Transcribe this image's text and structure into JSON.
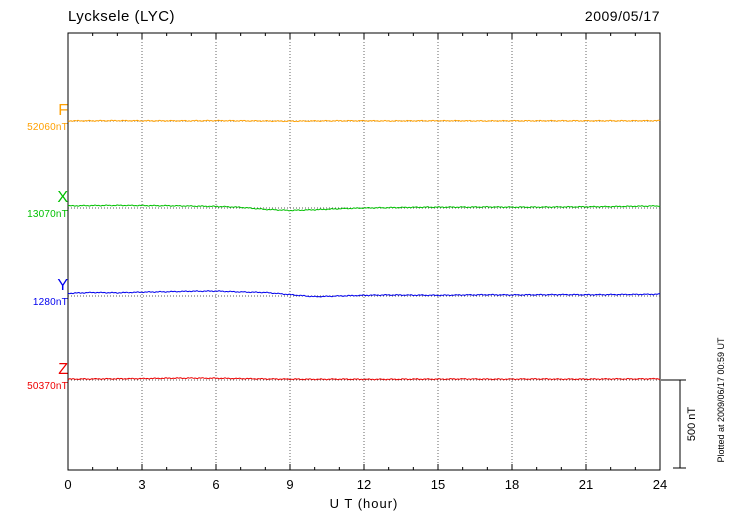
{
  "header": {
    "title": "Lycksele (LYC)",
    "date": "2009/05/17"
  },
  "axis": {
    "x_label": "U T (hour)",
    "x_ticks": [
      0,
      3,
      6,
      9,
      12,
      15,
      18,
      21,
      24
    ]
  },
  "scale_bar": {
    "label": "500 nT",
    "value_nt": 500
  },
  "footer_note": "Plotted at 2009/06/17 00:59 UT",
  "chart_data": {
    "type": "line",
    "title": "Lycksele (LYC) magnetogram 2009/05/17",
    "xlabel": "U T (hour)",
    "ylabel": "",
    "x_range": [
      0,
      24
    ],
    "grid": "vertical dotted every 3 hours; dotted baseline per trace",
    "legend_position": "left margin labels",
    "scale": {
      "label": "500 nT",
      "nt": 500
    },
    "x": [
      0,
      1,
      2,
      3,
      4,
      5,
      6,
      7,
      8,
      9,
      10,
      11,
      12,
      13,
      14,
      15,
      16,
      17,
      18,
      19,
      20,
      21,
      22,
      23,
      24
    ],
    "series": [
      {
        "name": "F",
        "base_label": "52060nT",
        "base": 52060,
        "color": "#FFA000",
        "values": [
          52061,
          52061,
          52062,
          52061,
          52061,
          52061,
          52062,
          52061,
          52060,
          52059,
          52060,
          52061,
          52061,
          52060,
          52061,
          52061,
          52061,
          52060,
          52061,
          52061,
          52061,
          52061,
          52061,
          52061,
          52062
        ]
      },
      {
        "name": "X",
        "base_label": "13070nT",
        "base": 13070,
        "color": "#00C000",
        "values": [
          13082,
          13084,
          13085,
          13084,
          13083,
          13081,
          13079,
          13074,
          13062,
          13056,
          13060,
          13066,
          13070,
          13072,
          13074,
          13075,
          13075,
          13076,
          13075,
          13075,
          13076,
          13077,
          13078,
          13080,
          13082
        ]
      },
      {
        "name": "Y",
        "base_label": "1280nT",
        "base": 1280,
        "color": "#0000EE",
        "values": [
          1295,
          1300,
          1298,
          1302,
          1304,
          1307,
          1308,
          1303,
          1300,
          1288,
          1276,
          1280,
          1284,
          1286,
          1285,
          1284,
          1286,
          1287,
          1286,
          1287,
          1288,
          1287,
          1288,
          1289,
          1290
        ]
      },
      {
        "name": "Z",
        "base_label": "50370nT",
        "base": 50370,
        "color": "#EE0000",
        "values": [
          50375,
          50376,
          50377,
          50378,
          50380,
          50381,
          50380,
          50378,
          50376,
          50375,
          50374,
          50375,
          50374,
          50374,
          50375,
          50375,
          50376,
          50375,
          50375,
          50376,
          50375,
          50375,
          50376,
          50376,
          50377
        ]
      }
    ]
  }
}
